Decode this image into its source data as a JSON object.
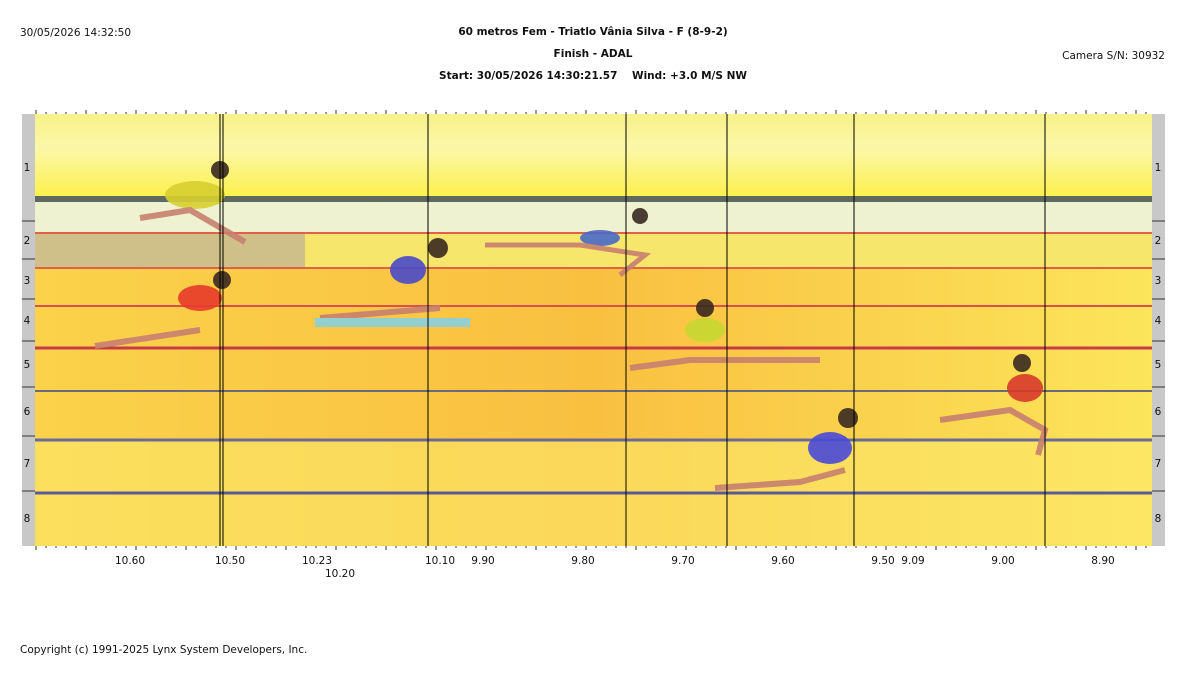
{
  "header": {
    "timestamp": "30/05/2026 14:32:50",
    "title": "60 metros Fem - Triatlo Vânia Silva - F (8-9-2)",
    "subtitle": "Finish - ADAL",
    "start_info": "Start: 30/05/2026 14:30:21.57    Wind: +3.0 M/S NW",
    "camera": "Camera S/N: 30932"
  },
  "lanes": [
    "1",
    "2",
    "3",
    "4",
    "5",
    "6",
    "7",
    "8"
  ],
  "time_labels": [
    "10.60",
    "10.50",
    "10.23",
    "10.20",
    "10.10",
    "9.90",
    "9.80",
    "9.70",
    "9.60",
    "9.50",
    "9.09",
    "9.00",
    "8.90"
  ],
  "footer": {
    "copyright": "Copyright (c) 1991-2025 Lynx System Developers, Inc."
  }
}
